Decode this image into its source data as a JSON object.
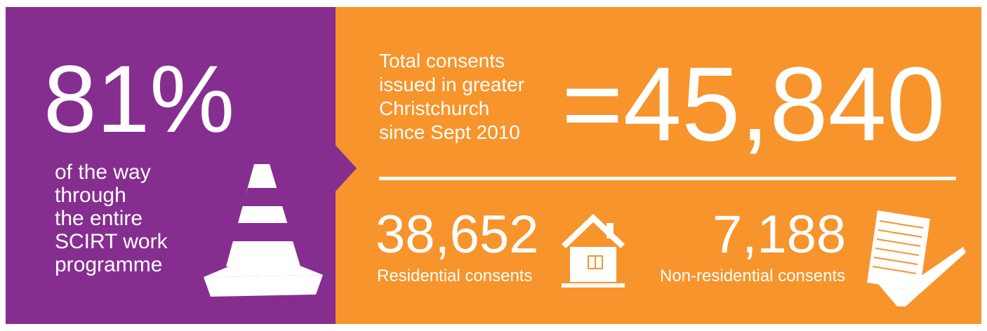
{
  "left": {
    "stat": "81%",
    "caption_lines": [
      "of the way",
      "through",
      "the entire",
      "SCIRT work",
      "programme"
    ]
  },
  "right": {
    "total": {
      "label_lines": [
        "Total consents",
        "issued in greater",
        "Christchurch",
        "since Sept 2010"
      ],
      "value": "=45,840"
    },
    "items": [
      {
        "value": "38,652",
        "label": "Residential consents"
      },
      {
        "value": "7,188",
        "label": "Non-residential consents"
      }
    ]
  }
}
